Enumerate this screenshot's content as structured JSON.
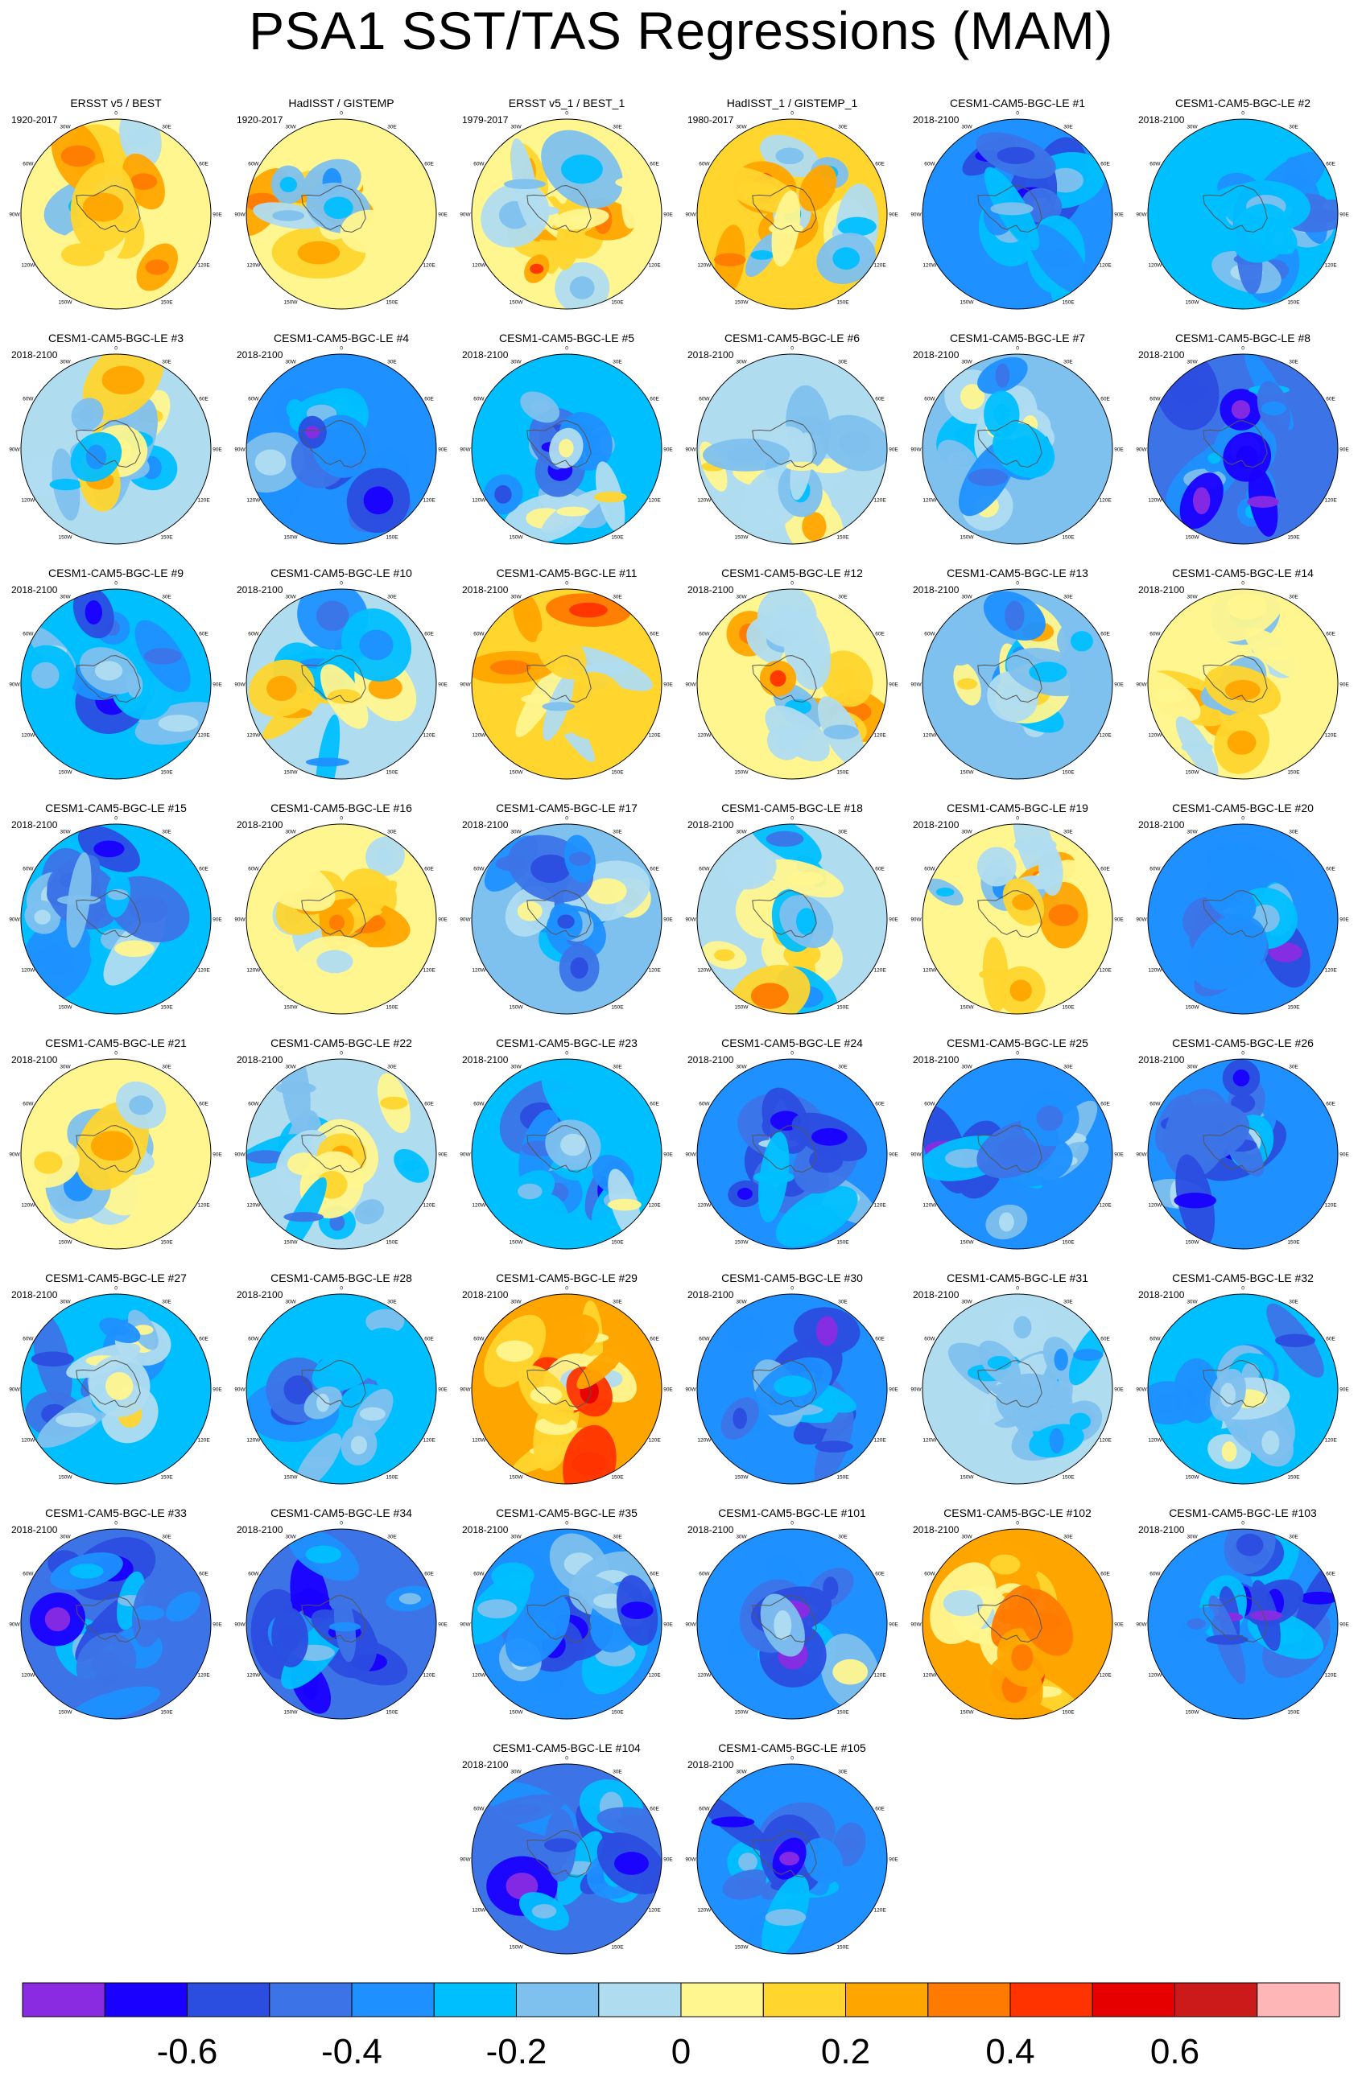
{
  "title": "PSA1 SST/TAS Regressions (MAM)",
  "chart_data": {
    "type": "polar-map-grid",
    "projection": "south-polar-stereographic",
    "season": "MAM",
    "longitude_labels": [
      "0",
      "30E",
      "60E",
      "90E",
      "120E",
      "150E",
      "180",
      "150W",
      "120W",
      "90W",
      "60W",
      "30W"
    ],
    "colorbar": {
      "levels": [
        -0.7,
        -0.6,
        -0.5,
        -0.4,
        -0.3,
        -0.2,
        -0.1,
        0,
        0.1,
        0.2,
        0.3,
        0.4,
        0.5,
        0.6,
        0.7
      ],
      "tick_labels": [
        "-0.6",
        "-0.4",
        "-0.2",
        "0",
        "0.2",
        "0.4",
        "0.6"
      ],
      "tick_values": [
        -0.6,
        -0.4,
        -0.2,
        0,
        0.2,
        0.4,
        0.6
      ],
      "colors": [
        "#8a2be2",
        "#1a00ff",
        "#2b4de0",
        "#3c74e8",
        "#1e90ff",
        "#00bfff",
        "#7ec0ee",
        "#b0dcf0",
        "#fff68f",
        "#ffd52e",
        "#ffa500",
        "#ff7a00",
        "#ff3300",
        "#e60000",
        "#cc1a1a",
        "#ffb6b6"
      ]
    },
    "panels": [
      {
        "title": "ERSST v5 / BEST",
        "period": "1920-2017",
        "mean_regression": 0.05
      },
      {
        "title": "HadISST / GISTEMP",
        "period": "1920-2017",
        "mean_regression": 0.08
      },
      {
        "title": "ERSST v5_1 / BEST_1",
        "period": "1979-2017",
        "mean_regression": 0.06
      },
      {
        "title": "HadISST_1 / GISTEMP_1",
        "period": "1980-2017",
        "mean_regression": 0.1
      },
      {
        "title": "CESM1-CAM5-BGC-LE #1",
        "period": "2018-2100",
        "mean_regression": -0.35
      },
      {
        "title": "CESM1-CAM5-BGC-LE #2",
        "period": "2018-2100",
        "mean_regression": -0.3
      },
      {
        "title": "CESM1-CAM5-BGC-LE #3",
        "period": "2018-2100",
        "mean_regression": -0.05
      },
      {
        "title": "CESM1-CAM5-BGC-LE #4",
        "period": "2018-2100",
        "mean_regression": -0.38
      },
      {
        "title": "CESM1-CAM5-BGC-LE #5",
        "period": "2018-2100",
        "mean_regression": -0.25
      },
      {
        "title": "CESM1-CAM5-BGC-LE #6",
        "period": "2018-2100",
        "mean_regression": -0.1
      },
      {
        "title": "CESM1-CAM5-BGC-LE #7",
        "period": "2018-2100",
        "mean_regression": -0.2
      },
      {
        "title": "CESM1-CAM5-BGC-LE #8",
        "period": "2018-2100",
        "mean_regression": -0.5
      },
      {
        "title": "CESM1-CAM5-BGC-LE #9",
        "period": "2018-2100",
        "mean_regression": -0.3
      },
      {
        "title": "CESM1-CAM5-BGC-LE #10",
        "period": "2018-2100",
        "mean_regression": -0.1
      },
      {
        "title": "CESM1-CAM5-BGC-LE #11",
        "period": "2018-2100",
        "mean_regression": 0.12
      },
      {
        "title": "CESM1-CAM5-BGC-LE #12",
        "period": "2018-2100",
        "mean_regression": 0.05
      },
      {
        "title": "CESM1-CAM5-BGC-LE #13",
        "period": "2018-2100",
        "mean_regression": -0.15
      },
      {
        "title": "CESM1-CAM5-BGC-LE #14",
        "period": "2018-2100",
        "mean_regression": 0.0
      },
      {
        "title": "CESM1-CAM5-BGC-LE #15",
        "period": "2018-2100",
        "mean_regression": -0.3
      },
      {
        "title": "CESM1-CAM5-BGC-LE #16",
        "period": "2018-2100",
        "mean_regression": 0.05
      },
      {
        "title": "CESM1-CAM5-BGC-LE #17",
        "period": "2018-2100",
        "mean_regression": -0.2
      },
      {
        "title": "CESM1-CAM5-BGC-LE #18",
        "period": "2018-2100",
        "mean_regression": -0.05
      },
      {
        "title": "CESM1-CAM5-BGC-LE #19",
        "period": "2018-2100",
        "mean_regression": 0.05
      },
      {
        "title": "CESM1-CAM5-BGC-LE #20",
        "period": "2018-2100",
        "mean_regression": -0.38
      },
      {
        "title": "CESM1-CAM5-BGC-LE #21",
        "period": "2018-2100",
        "mean_regression": 0.02
      },
      {
        "title": "CESM1-CAM5-BGC-LE #22",
        "period": "2018-2100",
        "mean_regression": -0.08
      },
      {
        "title": "CESM1-CAM5-BGC-LE #23",
        "period": "2018-2100",
        "mean_regression": -0.3
      },
      {
        "title": "CESM1-CAM5-BGC-LE #24",
        "period": "2018-2100",
        "mean_regression": -0.35
      },
      {
        "title": "CESM1-CAM5-BGC-LE #25",
        "period": "2018-2100",
        "mean_regression": -0.33
      },
      {
        "title": "CESM1-CAM5-BGC-LE #26",
        "period": "2018-2100",
        "mean_regression": -0.38
      },
      {
        "title": "CESM1-CAM5-BGC-LE #27",
        "period": "2018-2100",
        "mean_regression": -0.25
      },
      {
        "title": "CESM1-CAM5-BGC-LE #28",
        "period": "2018-2100",
        "mean_regression": -0.25
      },
      {
        "title": "CESM1-CAM5-BGC-LE #29",
        "period": "2018-2100",
        "mean_regression": 0.28
      },
      {
        "title": "CESM1-CAM5-BGC-LE #30",
        "period": "2018-2100",
        "mean_regression": -0.38
      },
      {
        "title": "CESM1-CAM5-BGC-LE #31",
        "period": "2018-2100",
        "mean_regression": -0.05
      },
      {
        "title": "CESM1-CAM5-BGC-LE #32",
        "period": "2018-2100",
        "mean_regression": -0.3
      },
      {
        "title": "CESM1-CAM5-BGC-LE #33",
        "period": "2018-2100",
        "mean_regression": -0.45
      },
      {
        "title": "CESM1-CAM5-BGC-LE #34",
        "period": "2018-2100",
        "mean_regression": -0.5
      },
      {
        "title": "CESM1-CAM5-BGC-LE #35",
        "period": "2018-2100",
        "mean_regression": -0.35
      },
      {
        "title": "CESM1-CAM5-BGC-LE #101",
        "period": "2018-2100",
        "mean_regression": -0.33
      },
      {
        "title": "CESM1-CAM5-BGC-LE #102",
        "period": "2018-2100",
        "mean_regression": 0.22
      },
      {
        "title": "CESM1-CAM5-BGC-LE #103",
        "period": "2018-2100",
        "mean_regression": -0.38
      },
      {
        "title": "CESM1-CAM5-BGC-LE #104",
        "period": "2018-2100",
        "mean_regression": -0.45
      },
      {
        "title": "CESM1-CAM5-BGC-LE #105",
        "period": "2018-2100",
        "mean_regression": -0.4
      }
    ]
  }
}
